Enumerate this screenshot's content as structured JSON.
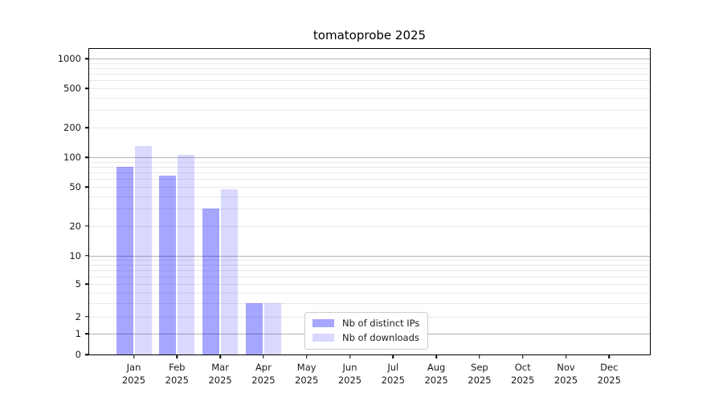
{
  "chart_data": {
    "type": "bar",
    "title": "tomatoprobe 2025",
    "categories": [
      "Jan",
      "Feb",
      "Mar",
      "Apr",
      "May",
      "Jun",
      "Jul",
      "Aug",
      "Sep",
      "Oct",
      "Nov",
      "Dec"
    ],
    "x_tick_year": "2025",
    "series": [
      {
        "name": "Nb of distinct IPs",
        "color": "#0000ff",
        "alpha": 0.35,
        "values": [
          80,
          65,
          30,
          3,
          0,
          0,
          0,
          0,
          0,
          0,
          0,
          0
        ]
      },
      {
        "name": "Nb of downloads",
        "color": "#0000ff",
        "alpha": 0.15,
        "values": [
          130,
          105,
          47,
          3,
          0,
          0,
          0,
          0,
          0,
          0,
          0,
          0
        ]
      }
    ],
    "yscale": {
      "type": "asinh",
      "linear_width": 2
    },
    "ylim": [
      0,
      1300
    ],
    "y_ticks": [
      0,
      1,
      2,
      5,
      10,
      20,
      50,
      100,
      200,
      500,
      1000
    ],
    "y_major_gridlines": [
      1,
      10,
      100,
      1000
    ],
    "y_minor_gridline_decades": [
      1,
      10,
      100
    ],
    "grid": true,
    "legend_location": "inside lower middle-left",
    "colors": {
      "background": "#ffffff",
      "text": "#1a1a1a",
      "title": "#000000",
      "spine": "#000000",
      "grid_major": "#b3b3b3",
      "grid_minor": "#e8e8e8",
      "legend_border": "#cccccc",
      "bar_fill_distinct_ips": "#a6a6ff",
      "bar_fill_downloads": "#d9d9ff"
    }
  }
}
